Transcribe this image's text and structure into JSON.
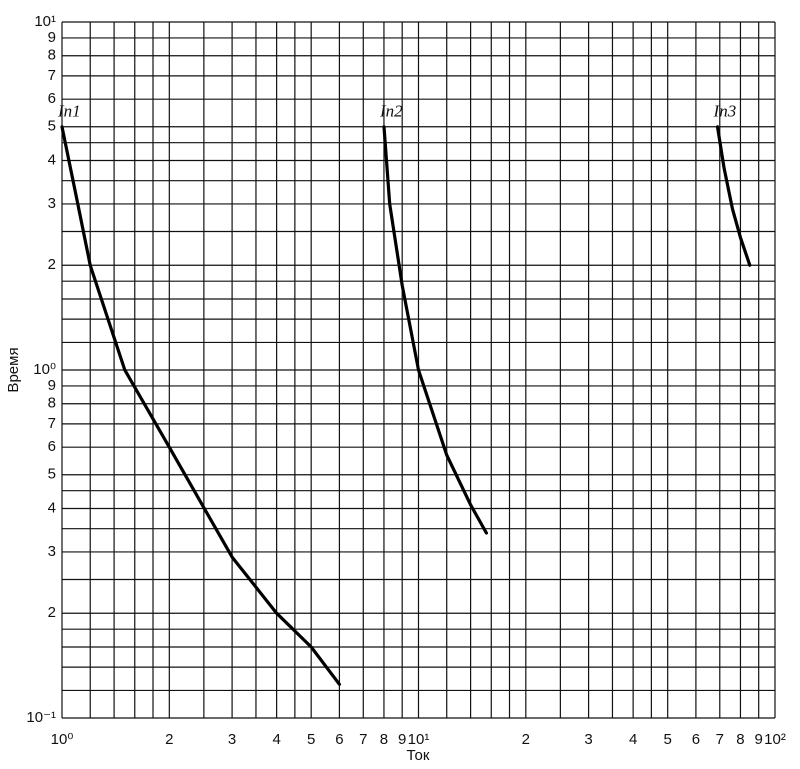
{
  "chart_data": {
    "type": "line",
    "xlabel": "Ток",
    "ylabel": "Время",
    "xscale": "log",
    "yscale": "log",
    "grid": true,
    "xlim": [
      1,
      100
    ],
    "ylim": [
      0.1,
      10
    ],
    "xticks": [
      {
        "value": 1,
        "label": "10⁰"
      },
      2,
      3,
      4,
      5,
      6,
      7,
      8,
      9,
      {
        "value": 10,
        "label": "10¹"
      },
      {
        "value": 20,
        "label": "2"
      },
      {
        "value": 30,
        "label": "3"
      },
      {
        "value": 40,
        "label": "4"
      },
      {
        "value": 50,
        "label": "5"
      },
      {
        "value": 60,
        "label": "6"
      },
      {
        "value": 70,
        "label": "7"
      },
      {
        "value": 80,
        "label": "8"
      },
      {
        "value": 90,
        "label": "9"
      },
      {
        "value": 100,
        "label": "10²"
      }
    ],
    "yticks": [
      {
        "value": 0.1,
        "label": "10⁻¹"
      },
      {
        "value": 0.2,
        "label": "2"
      },
      {
        "value": 0.3,
        "label": "3"
      },
      {
        "value": 0.4,
        "label": "4"
      },
      {
        "value": 0.5,
        "label": "5"
      },
      {
        "value": 0.6,
        "label": "6"
      },
      {
        "value": 0.7,
        "label": "7"
      },
      {
        "value": 0.8,
        "label": "8"
      },
      {
        "value": 0.9,
        "label": "9"
      },
      {
        "value": 1,
        "label": "10⁰"
      },
      2,
      3,
      4,
      5,
      6,
      7,
      8,
      9,
      {
        "value": 10,
        "label": "10¹"
      }
    ],
    "xgrid": [
      1.2,
      1.4,
      1.6,
      1.8,
      2.5,
      3.5,
      4.5,
      12,
      14,
      16,
      18,
      25,
      35,
      45
    ],
    "ygrid": [
      0.12,
      0.14,
      0.16,
      0.18,
      0.25,
      0.35,
      0.45,
      1.2,
      1.4,
      1.6,
      1.8,
      2.5,
      3.5,
      4.5
    ],
    "series": [
      {
        "name": "Iп1",
        "color": "#000000",
        "x": [
          1,
          1.1,
          1.2,
          1.5,
          2,
          3,
          4,
          5,
          6
        ],
        "values": [
          5,
          3.1,
          2.0,
          1.0,
          0.6,
          0.29,
          0.2,
          0.16,
          0.125
        ]
      },
      {
        "name": "Iп2",
        "color": "#000000",
        "x": [
          8,
          8.3,
          9,
          10,
          12,
          14,
          15.5
        ],
        "values": [
          5,
          3,
          1.75,
          1.0,
          0.57,
          0.41,
          0.34
        ]
      },
      {
        "name": "Iп3",
        "color": "#000000",
        "x": [
          69,
          72,
          76,
          80,
          85
        ],
        "values": [
          5,
          3.8,
          2.9,
          2.4,
          2.0
        ]
      }
    ]
  }
}
